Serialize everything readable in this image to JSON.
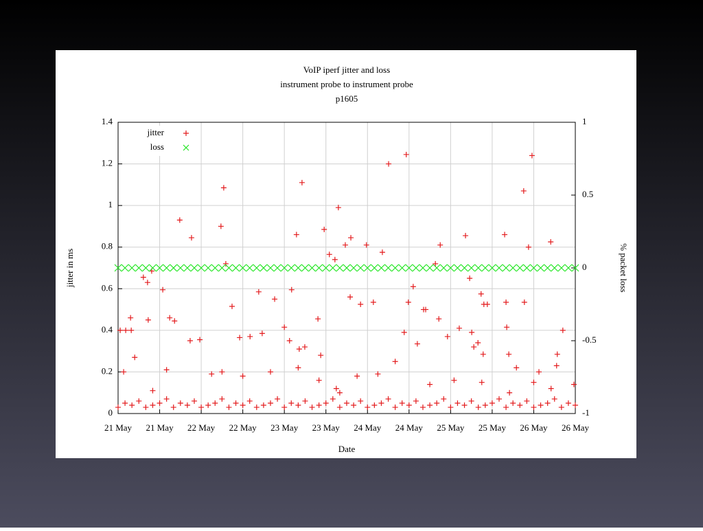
{
  "chart_data": {
    "type": "scatter",
    "title": "VoIP iperf jitter and loss",
    "subtitle": [
      "instrument probe to instrument probe",
      "p1605"
    ],
    "x_label": "Date",
    "y_label": "jitter in ms",
    "y2_label": "% packet loss",
    "xlim": [
      0,
      132
    ],
    "xticks": [
      {
        "value": 0,
        "label": "21 May"
      },
      {
        "value": 12,
        "label": "21 May"
      },
      {
        "value": 24,
        "label": "22 May"
      },
      {
        "value": 36,
        "label": "22 May"
      },
      {
        "value": 48,
        "label": "23 May"
      },
      {
        "value": 60,
        "label": "23 May"
      },
      {
        "value": 72,
        "label": "24 May"
      },
      {
        "value": 84,
        "label": "24 May"
      },
      {
        "value": 96,
        "label": "25 May"
      },
      {
        "value": 108,
        "label": "25 May"
      },
      {
        "value": 120,
        "label": "26 May"
      },
      {
        "value": 132,
        "label": "26 May"
      }
    ],
    "ylim": [
      0,
      1.4
    ],
    "yticks": [
      0,
      0.2,
      0.4,
      0.6,
      0.8,
      1,
      1.2,
      1.4
    ],
    "y2lim": [
      -1,
      1
    ],
    "y2ticks": [
      -1,
      -0.5,
      0,
      0.5,
      1
    ],
    "grid": true,
    "legend": "upper left",
    "series": [
      {
        "name": "jitter",
        "color": "#e31a1c",
        "marker": "plus",
        "x": [
          0.6,
          2.2,
          3.8,
          1.6,
          3.6,
          4.8,
          17.8,
          21.2,
          29.7,
          30.5,
          31.1,
          32.9,
          53.1,
          51.5,
          59.5,
          63.6,
          61.0,
          62.6,
          65.6,
          67.2,
          71.7,
          76.3,
          78.1,
          83.2,
          83.8,
          85.2,
          93.0,
          91.6,
          100.3,
          101.5,
          104.8,
          111.6,
          117.1,
          119.5,
          118.5,
          124.9,
          112.0,
          117.3,
          7.3,
          8.5,
          9.7,
          12.9,
          14.9,
          16.3,
          8.7,
          20.8,
          23.6,
          35.1,
          38.1,
          40.6,
          41.6,
          45.2,
          48.0,
          50.1,
          49.5,
          52.3,
          53.9,
          57.7,
          58.5,
          67.0,
          70.0,
          73.7,
          82.6,
          86.4,
          88.2,
          88.8,
          92.6,
          95.1,
          98.5,
          102.1,
          102.7,
          103.9,
          105.6,
          106.6,
          105.4,
          112.2,
          112.8,
          115.0,
          121.5,
          126.8,
          126.6,
          128.4,
          131.6,
          10,
          14,
          27,
          30,
          36,
          44,
          52,
          58,
          63,
          64,
          69,
          75,
          80,
          90,
          97,
          105,
          113,
          120,
          125,
          0,
          2,
          4,
          6,
          8,
          10,
          12,
          14,
          16,
          18,
          20,
          22,
          24,
          26,
          28,
          30,
          32,
          34,
          36,
          38,
          40,
          42,
          44,
          46,
          48,
          50,
          52,
          54,
          56,
          58,
          60,
          62,
          64,
          66,
          68,
          70,
          72,
          74,
          76,
          78,
          80,
          82,
          84,
          86,
          88,
          90,
          92,
          94,
          96,
          98,
          100,
          102,
          104,
          106,
          108,
          110,
          112,
          114,
          116,
          118,
          120,
          122,
          124,
          126,
          128,
          130,
          132
        ],
        "values": [
          0.4,
          0.4,
          0.4,
          0.2,
          0.46,
          0.27,
          0.93,
          0.845,
          0.9,
          1.085,
          0.72,
          0.515,
          1.11,
          0.86,
          0.885,
          0.99,
          0.765,
          0.74,
          0.81,
          0.845,
          0.81,
          0.775,
          1.2,
          1.245,
          0.535,
          0.61,
          0.81,
          0.72,
          0.855,
          0.65,
          0.575,
          0.86,
          1.07,
          1.24,
          0.8,
          0.825,
          0.535,
          0.535,
          0.655,
          0.63,
          0.685,
          0.595,
          0.46,
          0.445,
          0.45,
          0.35,
          0.355,
          0.365,
          0.37,
          0.585,
          0.385,
          0.55,
          0.415,
          0.595,
          0.35,
          0.31,
          0.32,
          0.455,
          0.28,
          0.56,
          0.525,
          0.535,
          0.39,
          0.335,
          0.5,
          0.5,
          0.455,
          0.37,
          0.41,
          0.39,
          0.32,
          0.34,
          0.525,
          0.525,
          0.285,
          0.415,
          0.285,
          0.22,
          0.2,
          0.285,
          0.23,
          0.4,
          0.14,
          0.11,
          0.21,
          0.19,
          0.2,
          0.18,
          0.2,
          0.22,
          0.16,
          0.12,
          0.1,
          0.18,
          0.19,
          0.25,
          0.14,
          0.16,
          0.15,
          0.1,
          0.15,
          0.12,
          0.03,
          0.05,
          0.04,
          0.06,
          0.03,
          0.04,
          0.05,
          0.07,
          0.03,
          0.05,
          0.04,
          0.06,
          0.03,
          0.04,
          0.05,
          0.07,
          0.03,
          0.05,
          0.04,
          0.06,
          0.03,
          0.04,
          0.05,
          0.07,
          0.03,
          0.05,
          0.04,
          0.06,
          0.03,
          0.04,
          0.05,
          0.07,
          0.03,
          0.05,
          0.04,
          0.06,
          0.03,
          0.04,
          0.05,
          0.07,
          0.03,
          0.05,
          0.04,
          0.06,
          0.03,
          0.04,
          0.05,
          0.07,
          0.03,
          0.05,
          0.04,
          0.06,
          0.03,
          0.04,
          0.05,
          0.07,
          0.03,
          0.05,
          0.04,
          0.06,
          0.03,
          0.04,
          0.05,
          0.07,
          0.03,
          0.05,
          0.04
        ]
      },
      {
        "name": "loss",
        "color": "#22e622",
        "marker": "cross",
        "axis": "y2",
        "x": [
          0,
          2,
          4,
          6,
          8,
          10,
          12,
          14,
          16,
          18,
          20,
          22,
          24,
          26,
          28,
          30,
          32,
          34,
          36,
          38,
          40,
          42,
          44,
          46,
          48,
          50,
          52,
          54,
          56,
          58,
          60,
          62,
          64,
          66,
          68,
          70,
          72,
          74,
          76,
          78,
          80,
          82,
          84,
          86,
          88,
          90,
          92,
          94,
          96,
          98,
          100,
          102,
          104,
          106,
          108,
          110,
          112,
          114,
          116,
          118,
          120,
          122,
          124,
          126,
          128,
          130,
          132
        ],
        "values": [
          0,
          0,
          0,
          0,
          0,
          0,
          0,
          0,
          0,
          0,
          0,
          0,
          0,
          0,
          0,
          0,
          0,
          0,
          0,
          0,
          0,
          0,
          0,
          0,
          0,
          0,
          0,
          0,
          0,
          0,
          0,
          0,
          0,
          0,
          0,
          0,
          0,
          0,
          0,
          0,
          0,
          0,
          0,
          0,
          0,
          0,
          0,
          0,
          0,
          0,
          0,
          0,
          0,
          0,
          0,
          0,
          0,
          0,
          0,
          0,
          0,
          0,
          0,
          0,
          0,
          0,
          0
        ]
      }
    ]
  }
}
